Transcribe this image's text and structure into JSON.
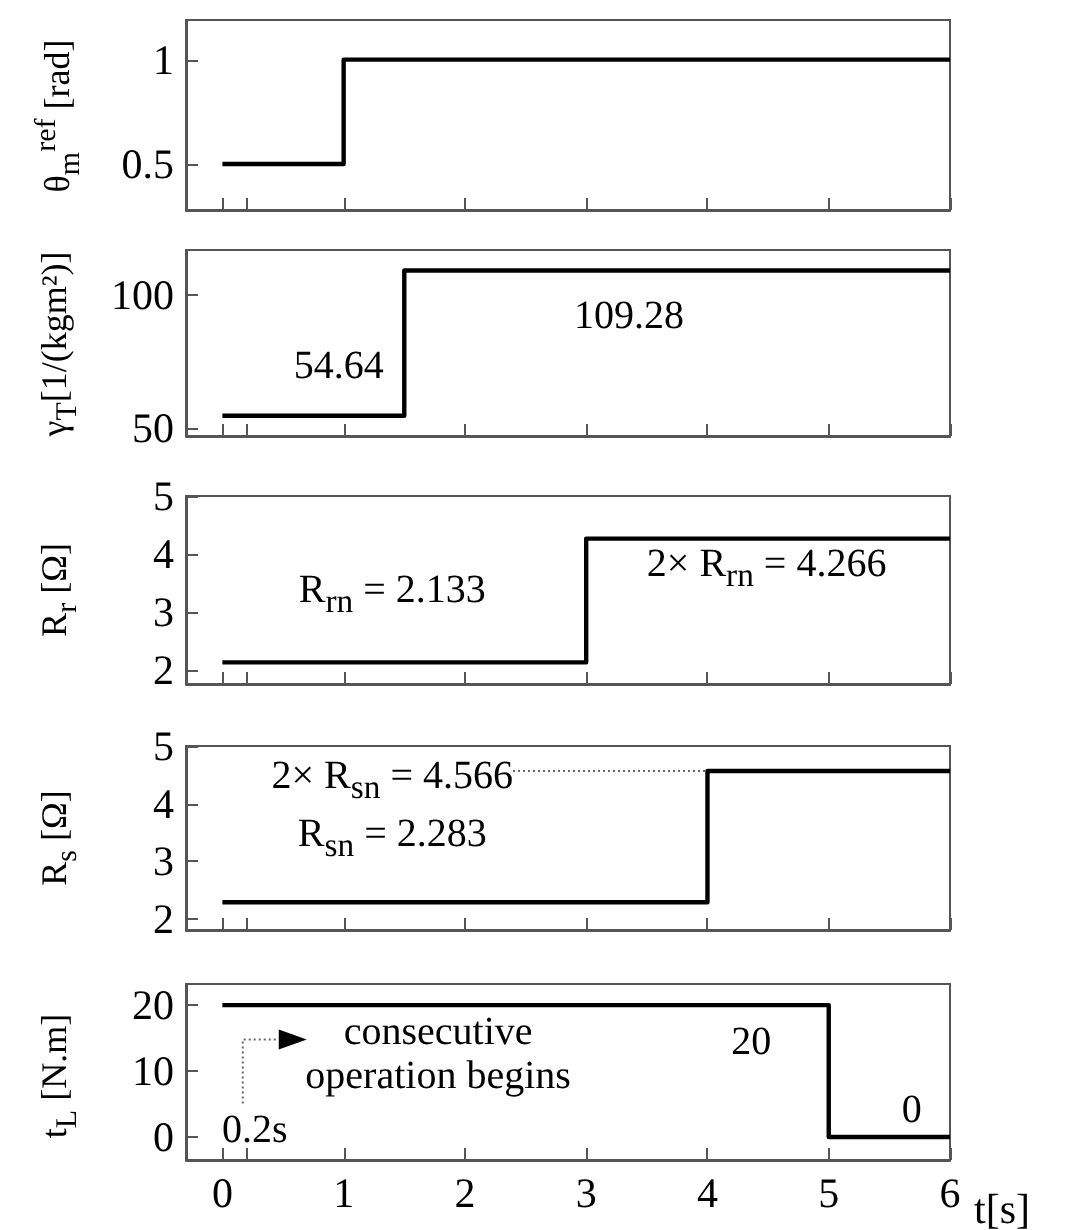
{
  "chart_data": [
    {
      "type": "step",
      "ylabel": "θ$_{m}$$^{ref}$ [rad]",
      "x": [
        0,
        1,
        6
      ],
      "series": [
        {
          "color": "#000000",
          "values": [
            0.5,
            1,
            1
          ]
        }
      ],
      "xlim": [
        -0.3,
        6
      ],
      "xticks": [
        {
          "value": 0,
          "label": null
        },
        {
          "value": 0.2,
          "label": null
        },
        {
          "value": 1,
          "label": null
        },
        {
          "value": 2,
          "label": null
        },
        {
          "value": 3,
          "label": null
        },
        {
          "value": 4,
          "label": null
        },
        {
          "value": 5,
          "label": null
        },
        {
          "value": 6,
          "label": null
        }
      ],
      "ylim": [
        0.28,
        1.19
      ],
      "yticks": [
        0.5,
        1
      ],
      "tick_labels": "y"
    },
    {
      "type": "step",
      "ylabel": "γ$_{T}$[1/(kgm²)]",
      "x": [
        0,
        1.5,
        6
      ],
      "series": [
        {
          "color": "#000000",
          "values": [
            54.64,
            109.28,
            109.28
          ]
        }
      ],
      "xlim": [
        -0.3,
        6
      ],
      "xticks": [
        {
          "value": 0,
          "label": null
        },
        {
          "value": 0.2,
          "label": null
        },
        {
          "value": 1,
          "label": null
        },
        {
          "value": 2,
          "label": null
        },
        {
          "value": 3,
          "label": null
        },
        {
          "value": 4,
          "label": null
        },
        {
          "value": 5,
          "label": null
        },
        {
          "value": 6,
          "label": null
        }
      ],
      "ylim": [
        47,
        117
      ],
      "yticks": [
        50,
        100
      ],
      "tick_labels": "y",
      "annotations": [
        "54.64",
        "109.28"
      ]
    },
    {
      "type": "step",
      "ylabel": "R$_{r}$ [Ω]",
      "x": [
        0,
        3,
        6
      ],
      "series": [
        {
          "color": "#000000",
          "values": [
            2.133,
            4.266,
            4.266
          ]
        }
      ],
      "xlim": [
        -0.3,
        6
      ],
      "xticks": [
        {
          "value": 0,
          "label": null
        },
        {
          "value": 0.2,
          "label": null
        },
        {
          "value": 1,
          "label": null
        },
        {
          "value": 2,
          "label": null
        },
        {
          "value": 3,
          "label": null
        },
        {
          "value": 4,
          "label": null
        },
        {
          "value": 5,
          "label": null
        },
        {
          "value": 6,
          "label": null
        }
      ],
      "ylim": [
        1.76,
        5
      ],
      "yticks": [
        2,
        3,
        4,
        5
      ],
      "tick_labels": "y",
      "annotations": [
        "R$_{rn}$ = 2.133",
        "2× R$_{rn}$ = 4.266"
      ]
    },
    {
      "type": "step",
      "ylabel": "R$_{s}$ [Ω]",
      "x": [
        0,
        4,
        6
      ],
      "series": [
        {
          "color": "#000000",
          "values": [
            2.283,
            4.566,
            4.566
          ]
        }
      ],
      "xlim": [
        -0.3,
        6
      ],
      "xticks": [
        {
          "value": 0,
          "label": null
        },
        {
          "value": 0.2,
          "label": null
        },
        {
          "value": 1,
          "label": null
        },
        {
          "value": 2,
          "label": null
        },
        {
          "value": 3,
          "label": null
        },
        {
          "value": 4,
          "label": null
        },
        {
          "value": 5,
          "label": null
        },
        {
          "value": 6,
          "label": null
        }
      ],
      "ylim": [
        1.8,
        5
      ],
      "yticks": [
        2,
        3,
        4,
        5
      ],
      "tick_labels": "y",
      "annotations": [
        {
          "text": "2× R$_{sn}$ = 4.566",
          "x": 4,
          "y": 4.566
        },
        "R$_{sn}$ = 2.283"
      ]
    },
    {
      "type": "step",
      "ylabel": "t$_{L}$ [N.m]",
      "xlabel": "t[s]",
      "x": [
        0,
        5,
        6
      ],
      "series": [
        {
          "color": "#000000",
          "values": [
            20,
            0,
            0
          ]
        }
      ],
      "xlim": [
        -0.3,
        6
      ],
      "xticks": [
        0,
        {
          "value": 0.2,
          "label": null
        },
        1,
        2,
        3,
        4,
        5,
        6
      ],
      "ylim": [
        -3.5,
        23.2
      ],
      "yticks": [
        0,
        10,
        20
      ],
      "annotations": [
        "20",
        "0",
        "consecutive\noperation begins",
        "0.2s"
      ]
    }
  ]
}
